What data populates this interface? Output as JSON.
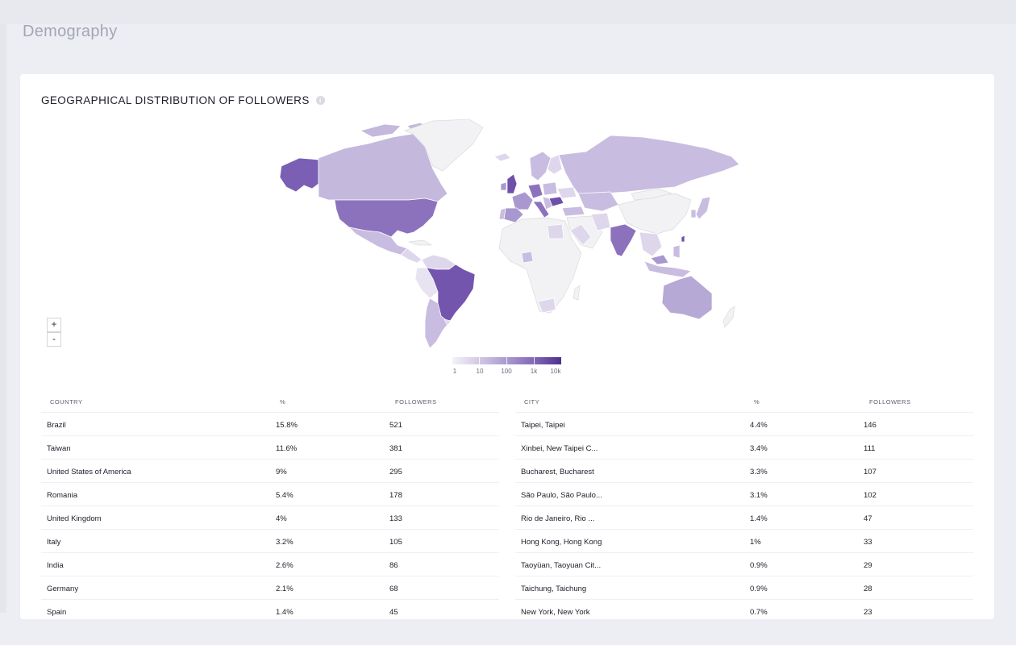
{
  "page": {
    "title": "Demography"
  },
  "card": {
    "title": "GEOGRAPHICAL DISTRIBUTION OF FOLLOWERS",
    "info_icon": "info-icon"
  },
  "map": {
    "zoom_in_label": "+",
    "zoom_out_label": "-",
    "colors": {
      "base": "#f2f2f4",
      "level1": "#ded7ec",
      "level2": "#c8bde0",
      "level3": "#a998cf",
      "level4": "#8c72bd",
      "level5": "#6f4fa9"
    },
    "legend": {
      "labels": [
        "1",
        "10",
        "100",
        "1k",
        "10k"
      ]
    }
  },
  "countries_table": {
    "headers": [
      "COUNTRY",
      "%",
      "FOLLOWERS"
    ],
    "rows": [
      [
        "Brazil",
        "15.8%",
        "521"
      ],
      [
        "Taiwan",
        "11.6%",
        "381"
      ],
      [
        "United States of America",
        "9%",
        "295"
      ],
      [
        "Romania",
        "5.4%",
        "178"
      ],
      [
        "United Kingdom",
        "4%",
        "133"
      ],
      [
        "Italy",
        "3.2%",
        "105"
      ],
      [
        "India",
        "2.6%",
        "86"
      ],
      [
        "Germany",
        "2.1%",
        "68"
      ],
      [
        "Spain",
        "1.4%",
        "45"
      ]
    ]
  },
  "cities_table": {
    "headers": [
      "CITY",
      "%",
      "FOLLOWERS"
    ],
    "rows": [
      [
        "Taipei, Taipei",
        "4.4%",
        "146"
      ],
      [
        "Xinbei, New Taipei C...",
        "3.4%",
        "111"
      ],
      [
        "Bucharest, Bucharest",
        "3.3%",
        "107"
      ],
      [
        "São Paulo, São Paulo...",
        "3.1%",
        "102"
      ],
      [
        "Rio de Janeiro, Rio ...",
        "1.4%",
        "47"
      ],
      [
        "Hong Kong, Hong Kong",
        "1%",
        "33"
      ],
      [
        "Taoyüan, Taoyuan Cit...",
        "0.9%",
        "29"
      ],
      [
        "Taichung, Taichung",
        "0.9%",
        "28"
      ],
      [
        "New York, New York",
        "0.7%",
        "23"
      ]
    ]
  }
}
